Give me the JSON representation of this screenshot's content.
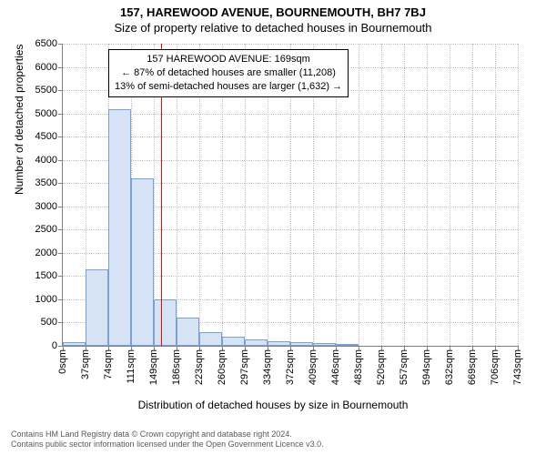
{
  "titles": {
    "main": "157, HAREWOOD AVENUE, BOURNEMOUTH, BH7 7BJ",
    "sub": "Size of property relative to detached houses in Bournemouth"
  },
  "chart": {
    "type": "histogram",
    "ylabel": "Number of detached properties",
    "xlabel": "Distribution of detached houses by size in Bournemouth",
    "ylim": [
      0,
      6500
    ],
    "ytick_step": 500,
    "yticks": [
      0,
      500,
      1000,
      1500,
      2000,
      2500,
      3000,
      3500,
      4000,
      4500,
      5000,
      5500,
      6000,
      6500
    ],
    "xticks": [
      "0sqm",
      "37sqm",
      "74sqm",
      "111sqm",
      "149sqm",
      "186sqm",
      "223sqm",
      "260sqm",
      "297sqm",
      "334sqm",
      "372sqm",
      "409sqm",
      "446sqm",
      "483sqm",
      "520sqm",
      "557sqm",
      "594sqm",
      "632sqm",
      "669sqm",
      "706sqm",
      "743sqm"
    ],
    "xtick_count": 21,
    "bars": [
      {
        "i": 0,
        "value": 80
      },
      {
        "i": 1,
        "value": 1650
      },
      {
        "i": 2,
        "value": 5100
      },
      {
        "i": 3,
        "value": 3600
      },
      {
        "i": 4,
        "value": 1000
      },
      {
        "i": 5,
        "value": 600
      },
      {
        "i": 6,
        "value": 300
      },
      {
        "i": 7,
        "value": 200
      },
      {
        "i": 8,
        "value": 130
      },
      {
        "i": 9,
        "value": 100
      },
      {
        "i": 10,
        "value": 70
      },
      {
        "i": 11,
        "value": 60
      },
      {
        "i": 12,
        "value": 30
      }
    ],
    "bar_fill": "#d6e3f5",
    "bar_border": "#7aa0d6",
    "grid_color": "#c0c0c0",
    "axis_color": "#808080",
    "background_color": "#ffffff",
    "label_fontsize": 12,
    "tick_fontsize": 11,
    "title_fontsize": 13,
    "reference_line": {
      "value_sqm": 169,
      "max_sqm": 780,
      "color": "#ff0000"
    },
    "annotation": {
      "line1": "157 HAREWOOD AVENUE: 169sqm",
      "line2": "← 87% of detached houses are smaller (11,208)",
      "line3": "13% of semi-detached houses are larger (1,632) →",
      "border_color": "#000000",
      "background": "#ffffff",
      "fontsize": 11
    }
  },
  "footer": {
    "line1": "Contains HM Land Registry data © Crown copyright and database right 2024.",
    "line2": "Contains public sector information licensed under the Open Government Licence v3.0."
  }
}
